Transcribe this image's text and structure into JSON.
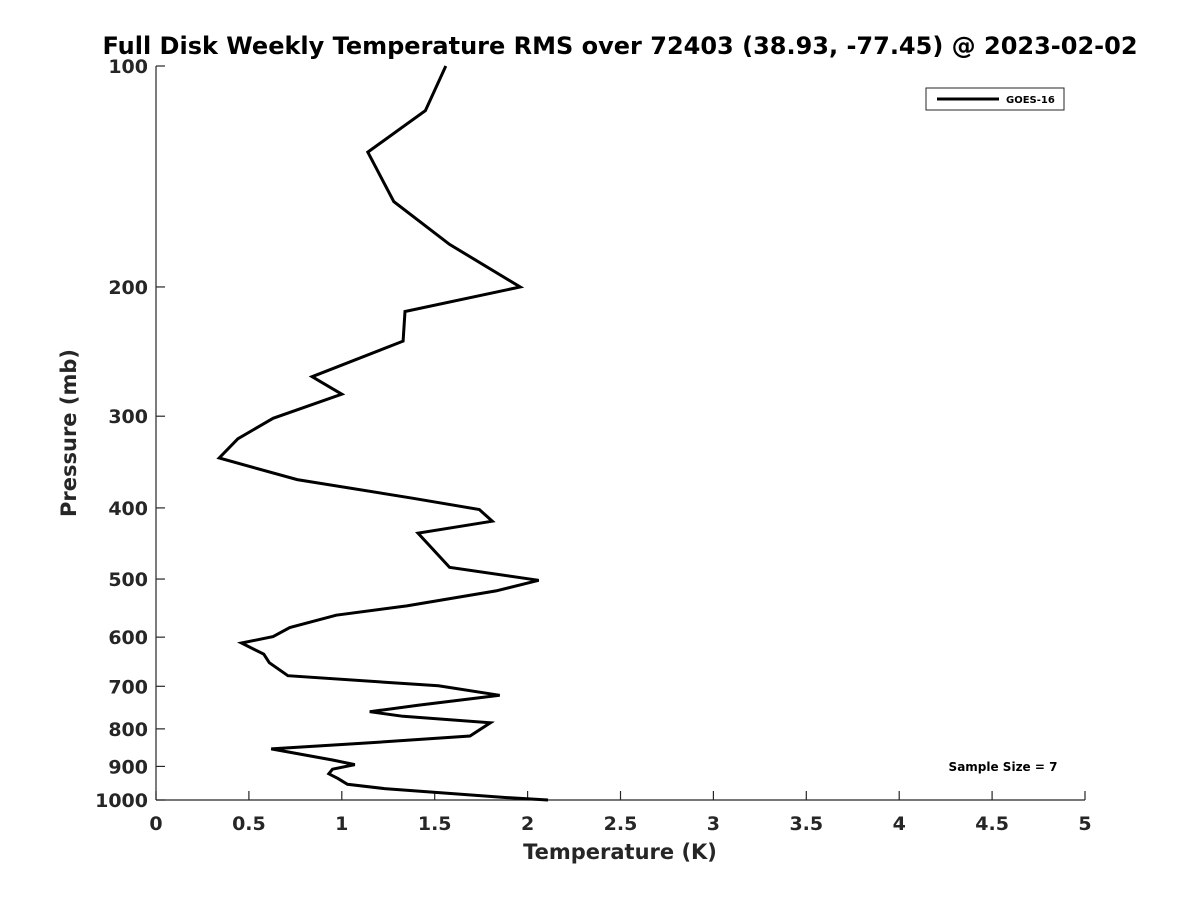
{
  "chart_data": {
    "type": "line",
    "title": "Full Disk Weekly Temperature RMS over 72403 (38.93, -77.45) @ 2023-02-02",
    "xlabel": "Temperature (K)",
    "ylabel": "Pressure (mb)",
    "xlim": [
      0,
      5
    ],
    "ylim": [
      100,
      1000
    ],
    "y_scale": "log",
    "y_direction": "reversed",
    "x_ticks": [
      "0",
      "0.5",
      "1",
      "1.5",
      "2",
      "2.5",
      "3",
      "3.5",
      "4",
      "4.5",
      "5"
    ],
    "x_tick_values": [
      0,
      0.5,
      1,
      1.5,
      2,
      2.5,
      3,
      3.5,
      4,
      4.5,
      5
    ],
    "y_ticks": [
      "100",
      "200",
      "300",
      "400",
      "500",
      "600",
      "700",
      "800",
      "900",
      "1000"
    ],
    "y_tick_values": [
      100,
      200,
      300,
      400,
      500,
      600,
      700,
      800,
      900,
      1000
    ],
    "grid": false,
    "legend_position": "top-right",
    "line_color": "#000000",
    "series": [
      {
        "name": "GOES-16",
        "x": [
          1.56,
          1.45,
          1.14,
          1.28,
          1.58,
          1.96,
          1.34,
          1.33,
          0.84,
          1.0,
          0.63,
          0.44,
          0.34,
          0.76,
          1.38,
          1.74,
          1.81,
          1.41,
          1.58,
          2.06,
          1.83,
          1.35,
          0.97,
          0.72,
          0.63,
          0.46,
          0.58,
          0.61,
          0.71,
          1.52,
          1.85,
          1.41,
          1.15,
          1.33,
          1.8,
          1.69,
          1.11,
          0.62,
          0.95,
          1.07,
          0.95,
          0.93,
          0.98,
          1.03,
          1.23,
          1.87,
          2.11
        ],
        "y": [
          100,
          115,
          131,
          153,
          175,
          200,
          216,
          237,
          265,
          280,
          302,
          322,
          342,
          366,
          388,
          402,
          417,
          433,
          482,
          502,
          519,
          544,
          560,
          582,
          599,
          611,
          633,
          650,
          677,
          699,
          720,
          743,
          758,
          769,
          785,
          818,
          837,
          852,
          882,
          895,
          908,
          921,
          935,
          952,
          965,
          992,
          1000
        ]
      }
    ]
  },
  "annotation": {
    "sample_size": "Sample Size = 7"
  }
}
